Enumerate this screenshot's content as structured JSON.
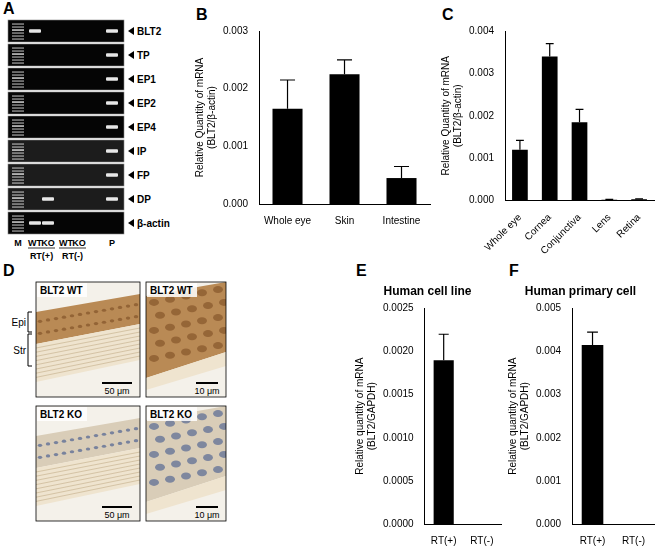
{
  "gel": {
    "panel": "A",
    "lanes": [
      "M",
      "WT",
      "KO",
      "WT",
      "KO",
      "P"
    ],
    "lane_groups": [
      "RT(+)",
      "RT(-)"
    ],
    "rows": [
      {
        "label": "BLT2",
        "bands": [
          true,
          true,
          false,
          false,
          false,
          true
        ]
      },
      {
        "label": "TP",
        "bands": [
          true,
          false,
          false,
          false,
          false,
          true
        ]
      },
      {
        "label": "EP1",
        "bands": [
          true,
          false,
          false,
          false,
          false,
          true
        ]
      },
      {
        "label": "EP2",
        "bands": [
          true,
          false,
          false,
          false,
          false,
          true
        ]
      },
      {
        "label": "EP4",
        "bands": [
          true,
          false,
          false,
          false,
          false,
          true
        ]
      },
      {
        "label": "IP",
        "bands": [
          true,
          false,
          false,
          false,
          false,
          true
        ]
      },
      {
        "label": "FP",
        "bands": [
          true,
          false,
          false,
          false,
          false,
          true
        ]
      },
      {
        "label": "DP",
        "bands": [
          true,
          false,
          true,
          false,
          false,
          true
        ]
      },
      {
        "label": "β-actin",
        "bands": [
          true,
          true,
          true,
          false,
          false,
          false
        ]
      }
    ]
  },
  "chart_data": [
    {
      "panel": "B",
      "type": "bar",
      "categories": [
        "Whole eye",
        "Skin",
        "Intestine"
      ],
      "values": [
        0.00165,
        0.00225,
        0.00045
      ],
      "errors": [
        0.0005,
        0.00025,
        0.0002
      ],
      "color": "#000000",
      "ylim": [
        0,
        0.003
      ],
      "yticks": [
        {
          "value": 0,
          "label": "0.000"
        },
        {
          "value": 0.001,
          "label": "0.001"
        },
        {
          "value": 0.002,
          "label": "0.002"
        },
        {
          "value": 0.003,
          "label": "0.003"
        }
      ],
      "ylabel": [
        "Relative Quantity of mRNA",
        "(BLT2/β-actin)"
      ],
      "grid": false
    },
    {
      "panel": "C",
      "type": "bar",
      "categories": [
        "Whole eye",
        "Cornea",
        "Conjunctiva",
        "Lens",
        "Retina"
      ],
      "values": [
        0.0012,
        0.0034,
        0.00185,
        2e-05,
        3e-05
      ],
      "errors": [
        0.00022,
        0.0003,
        0.0003,
        1e-05,
        1e-05
      ],
      "color": "#000000",
      "ylim": [
        0,
        0.004
      ],
      "yticks": [
        {
          "value": 0,
          "label": "0.000"
        },
        {
          "value": 0.001,
          "label": "0.001"
        },
        {
          "value": 0.002,
          "label": "0.002"
        },
        {
          "value": 0.003,
          "label": "0.003"
        },
        {
          "value": 0.004,
          "label": "0.004"
        }
      ],
      "ylabel": [
        "Relative Quantity of mRNA",
        "(BLT2/β-actin)"
      ],
      "grid": false
    },
    {
      "panel": "E",
      "type": "bar",
      "title": "Human cell line",
      "categories": [
        "RT(+)",
        "RT(-)"
      ],
      "values": [
        0.0019,
        0
      ],
      "errors": [
        0.0003,
        0
      ],
      "color": "#000000",
      "ylim": [
        0,
        0.0025
      ],
      "yticks": [
        {
          "value": 0,
          "label": "0.0000"
        },
        {
          "value": 0.0005,
          "label": "0.0005"
        },
        {
          "value": 0.001,
          "label": "0.0010"
        },
        {
          "value": 0.0015,
          "label": "0.0015"
        },
        {
          "value": 0.002,
          "label": "0.0020"
        },
        {
          "value": 0.0025,
          "label": "0.0025"
        }
      ],
      "ylabel": [
        "Relative quantity of mRNA",
        "(BLT2/GAPDH)"
      ],
      "grid": false
    },
    {
      "panel": "F",
      "type": "bar",
      "title": "Human primary cell",
      "categories": [
        "RT(+)",
        "RT(-)"
      ],
      "values": [
        0.00415,
        0
      ],
      "errors": [
        0.0003,
        0
      ],
      "color": "#000000",
      "ylim": [
        0,
        0.005
      ],
      "yticks": [
        {
          "value": 0,
          "label": "0.000"
        },
        {
          "value": 0.001,
          "label": "0.001"
        },
        {
          "value": 0.002,
          "label": "0.002"
        },
        {
          "value": 0.003,
          "label": "0.003"
        },
        {
          "value": 0.004,
          "label": "0.004"
        },
        {
          "value": 0.005,
          "label": "0.005"
        }
      ],
      "ylabel": [
        "Relative quantity of mRNA",
        "(BLT2/GAPDH)"
      ],
      "grid": false
    }
  ],
  "histology": {
    "panel": "D",
    "images": [
      {
        "label": "BLT2 WT",
        "scale_bar": "50 μm"
      },
      {
        "label": "BLT2 WT",
        "scale_bar": "10 μm"
      },
      {
        "label": "BLT2 KO",
        "scale_bar": "50 μm"
      },
      {
        "label": "BLT2 KO",
        "scale_bar": "10 μm"
      }
    ],
    "layers": [
      "Epi",
      "Str"
    ]
  }
}
